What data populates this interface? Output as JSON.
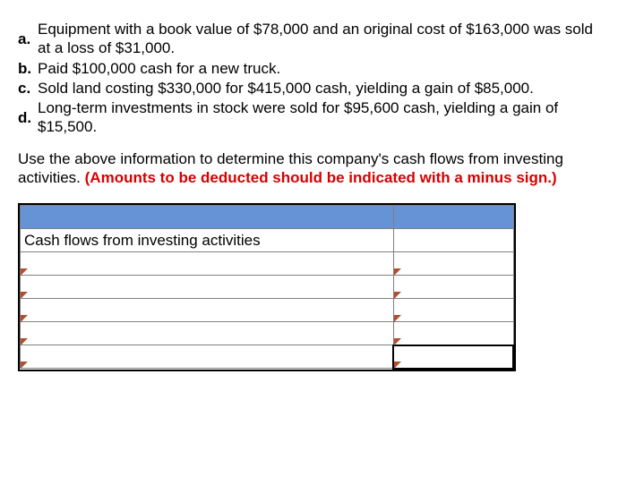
{
  "items": [
    {
      "letter": "a.",
      "text": "Equipment with a book value of $78,000 and an original cost of $163,000 was sold at a loss of $31,000."
    },
    {
      "letter": "b.",
      "text": "Paid $100,000 cash for a new truck."
    },
    {
      "letter": "c.",
      "text": "Sold land costing $330,000 for $415,000 cash, yielding a gain of $85,000."
    },
    {
      "letter": "d.",
      "text": "Long-term investments in stock were sold for $95,600 cash, yielding a gain of $15,500."
    }
  ],
  "instruction": {
    "lead": "Use the above information to determine this company's cash flows from investing activities. ",
    "highlight": "(Amounts to be deducted should be indicated with a minus sign.)"
  },
  "table": {
    "section_title": "Cash flows from investing activities",
    "rows": [
      {
        "desc": "",
        "amount": ""
      },
      {
        "desc": "",
        "amount": ""
      },
      {
        "desc": "",
        "amount": ""
      },
      {
        "desc": "",
        "amount": ""
      }
    ],
    "total": {
      "desc": "",
      "amount": ""
    }
  },
  "colors": {
    "header_fill": "#6693d6",
    "highlight_text": "#d90000",
    "cell_border": "#808080",
    "outer_border": "#000000",
    "corner_marker": "#b05030"
  }
}
